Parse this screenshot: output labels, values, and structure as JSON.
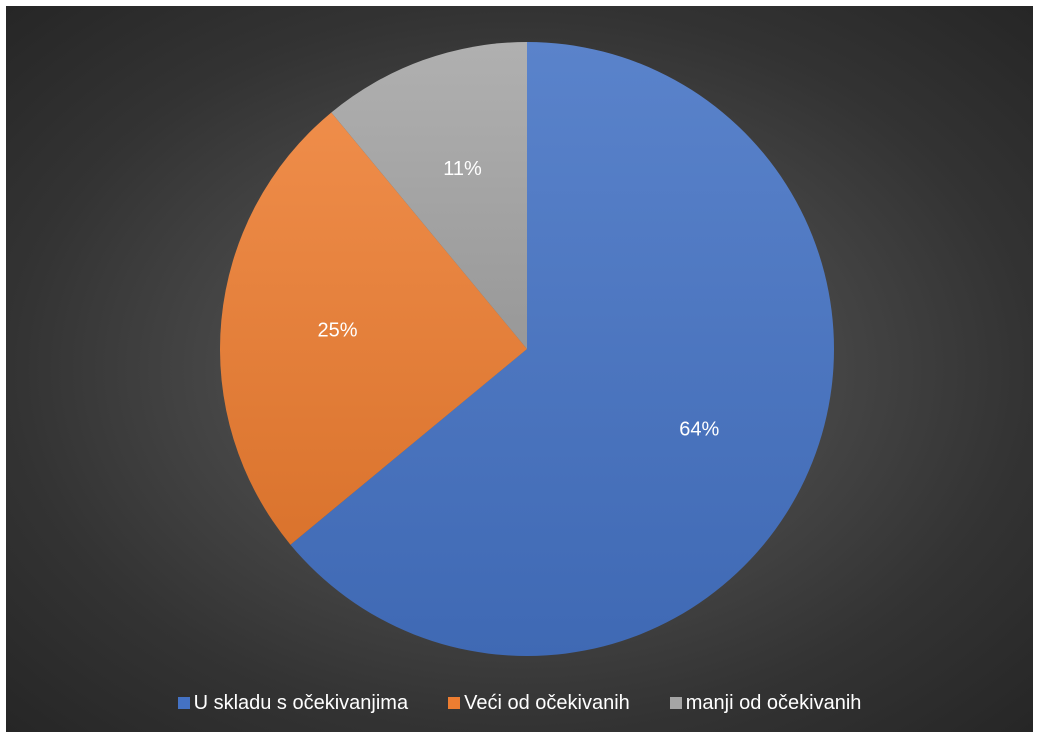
{
  "chart_data": {
    "type": "pie",
    "title": "",
    "categories": [
      "U skladu s očekivanjima",
      "Veći od očekivanih",
      "manji od očekivanih"
    ],
    "values": [
      64,
      25,
      11
    ],
    "value_labels": [
      "64%",
      "25%",
      "11%"
    ],
    "colors": [
      "#4472c4",
      "#ed7d31",
      "#a5a5a5"
    ],
    "start_angle_deg": 0,
    "direction": "clockwise",
    "legend_position": "bottom"
  }
}
